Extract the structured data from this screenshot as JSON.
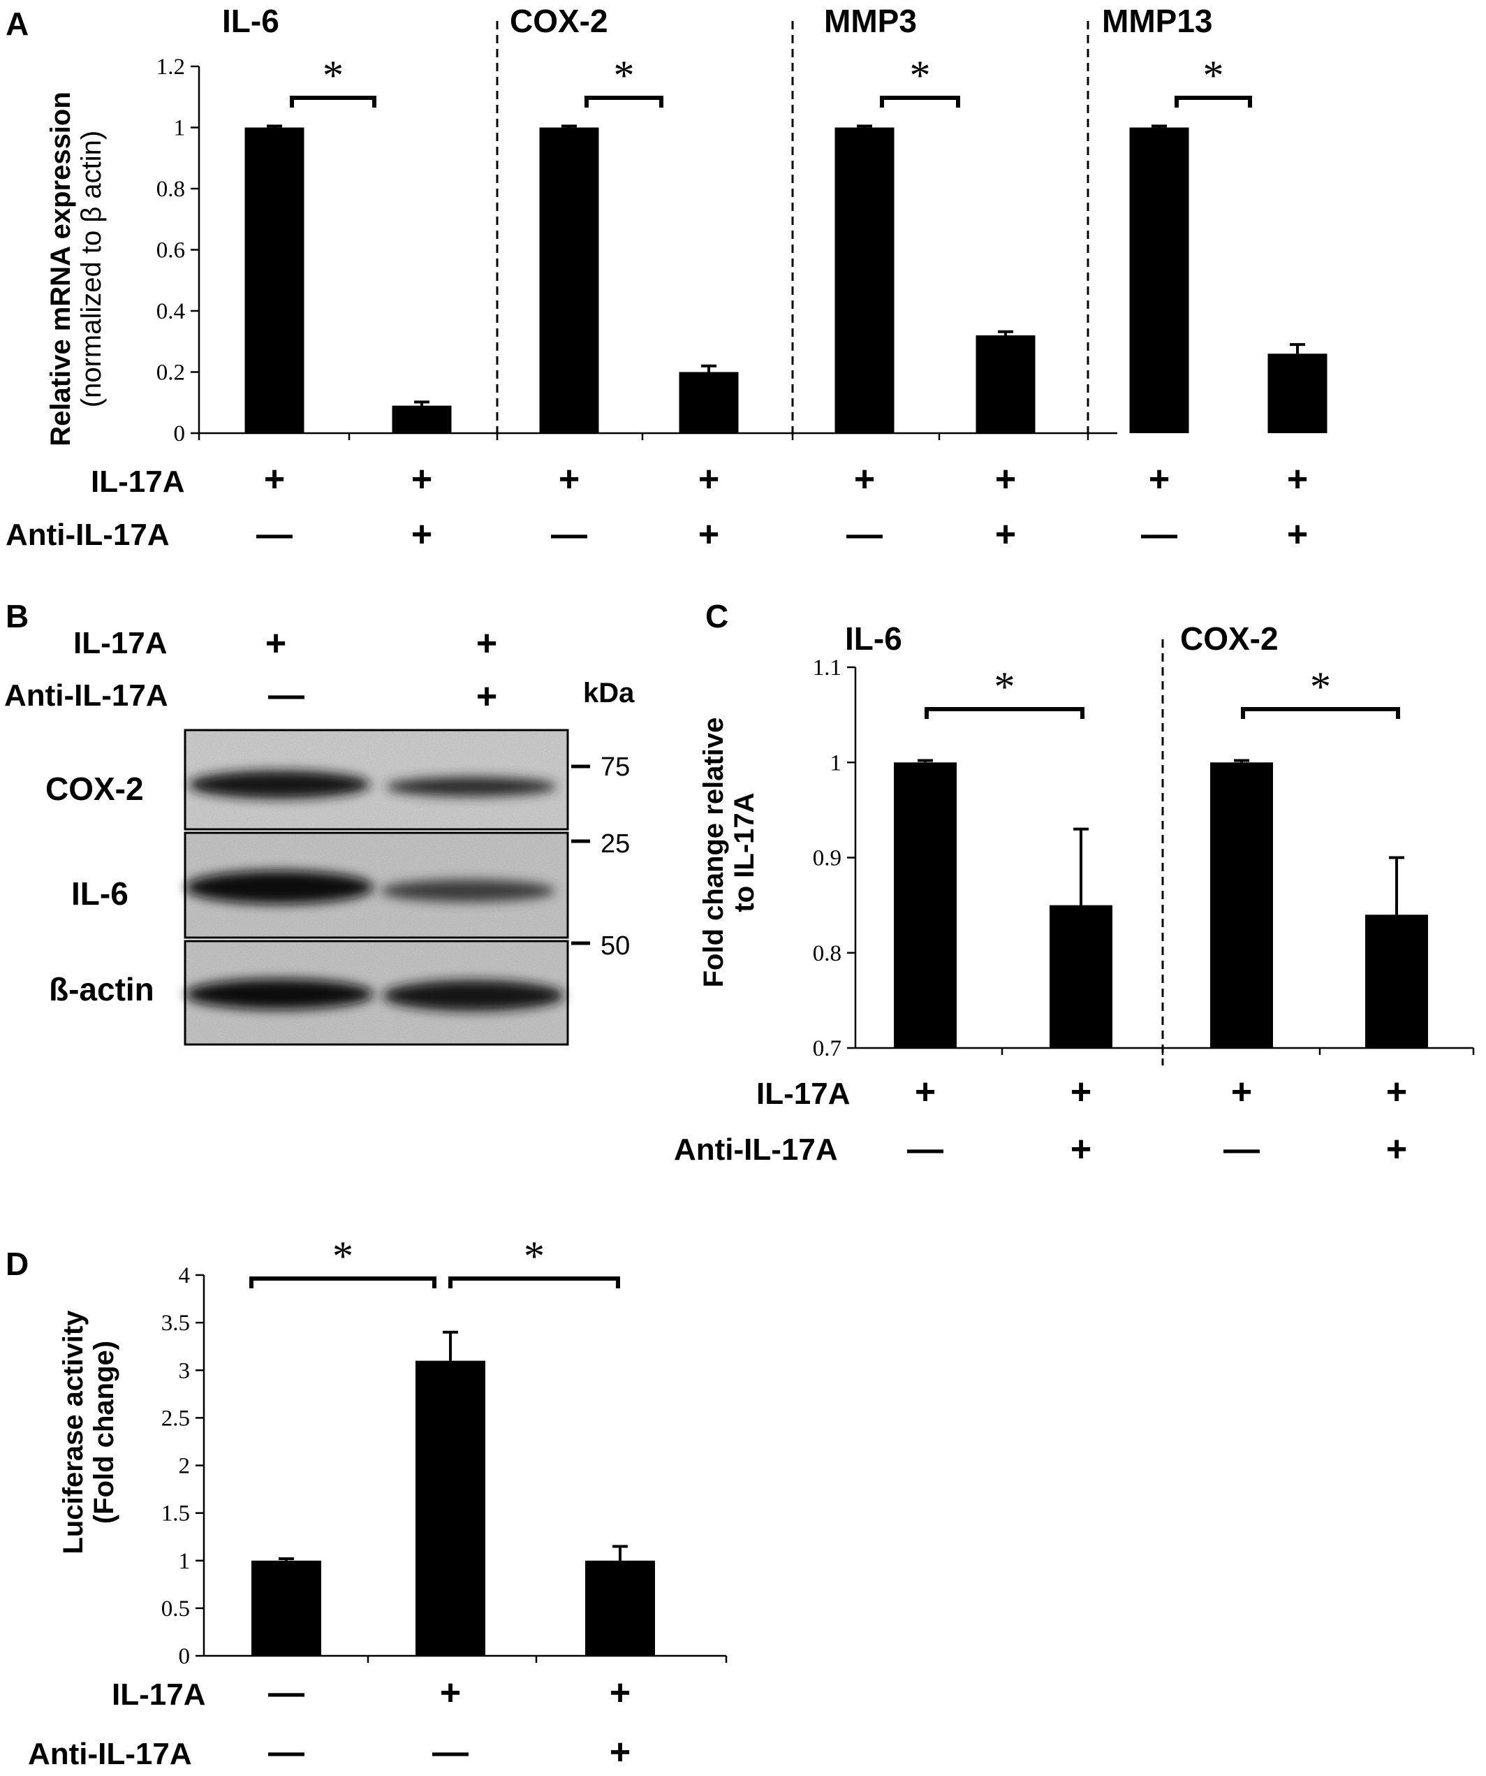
{
  "panels": {
    "A": "A",
    "B": "B",
    "C": "C",
    "D": "D"
  },
  "conditions": {
    "il17a": "IL-17A",
    "anti": "Anti-IL-17A",
    "plus": "+",
    "minus": "—"
  },
  "significance": "*",
  "chart_data": [
    {
      "panel": "A",
      "type": "bar",
      "ylabel": "Relative mRNA expression",
      "ylabel_sub": "(normalized to β actin)",
      "ylim": [
        0,
        1.2
      ],
      "yticks": [
        "0",
        "0.2",
        "0.4",
        "0.6",
        "0.8",
        "1",
        "1.2"
      ],
      "groups": [
        {
          "name": "IL-6",
          "values": [
            1.0,
            0.09
          ],
          "errors": [
            0.005,
            0.012
          ]
        },
        {
          "name": "COX-2",
          "values": [
            1.0,
            0.2
          ],
          "errors": [
            0.005,
            0.02
          ]
        },
        {
          "name": "MMP3",
          "values": [
            1.0,
            0.32
          ],
          "errors": [
            0.005,
            0.012
          ]
        },
        {
          "name": "MMP13",
          "values": [
            1.0,
            0.26
          ],
          "errors": [
            0.005,
            0.03
          ]
        }
      ],
      "il17a": [
        "+",
        "+",
        "+",
        "+",
        "+",
        "+",
        "+",
        "+"
      ],
      "anti_il17a": [
        "—",
        "+",
        "—",
        "+",
        "—",
        "+",
        "—",
        "+"
      ],
      "significance": [
        "*",
        "*",
        "*",
        "*"
      ]
    },
    {
      "panel": "C",
      "type": "bar",
      "ylabel": "Fold change  relative",
      "ylabel_sub": "to IL-17A",
      "ylim": [
        0.7,
        1.1
      ],
      "yticks": [
        "0.7",
        "0.8",
        "0.9",
        "1",
        "1.1"
      ],
      "groups": [
        {
          "name": "IL-6",
          "values": [
            1.0,
            0.85
          ],
          "errors": [
            0.002,
            0.08
          ]
        },
        {
          "name": "COX-2",
          "values": [
            1.0,
            0.84
          ],
          "errors": [
            0.002,
            0.06
          ]
        }
      ],
      "il17a": [
        "+",
        "+",
        "+",
        "+"
      ],
      "anti_il17a": [
        "—",
        "+",
        "—",
        "+"
      ],
      "significance": [
        "*",
        "*"
      ]
    },
    {
      "panel": "D",
      "type": "bar",
      "ylabel": "Luciferase activity",
      "ylabel_sub": "(Fold change)",
      "ylim": [
        0,
        4
      ],
      "yticks": [
        "0",
        "0.5",
        "1",
        "1.5",
        "2",
        "2.5",
        "3",
        "3.5",
        "4"
      ],
      "values": [
        1.0,
        3.1,
        1.0
      ],
      "errors": [
        0.02,
        0.3,
        0.15
      ],
      "il17a": [
        "—",
        "+",
        "+"
      ],
      "anti_il17a": [
        "—",
        "—",
        "+"
      ],
      "significance": [
        "*",
        "*"
      ]
    }
  ],
  "western_blot": {
    "il17a": [
      "+",
      "+"
    ],
    "anti_il17a": [
      "—",
      "+"
    ],
    "kda_label": "kDa",
    "bands": [
      {
        "name": "COX-2",
        "marker": "75"
      },
      {
        "name": "IL-6",
        "marker": "25"
      },
      {
        "name": "ß-actin",
        "marker": "50"
      }
    ]
  }
}
